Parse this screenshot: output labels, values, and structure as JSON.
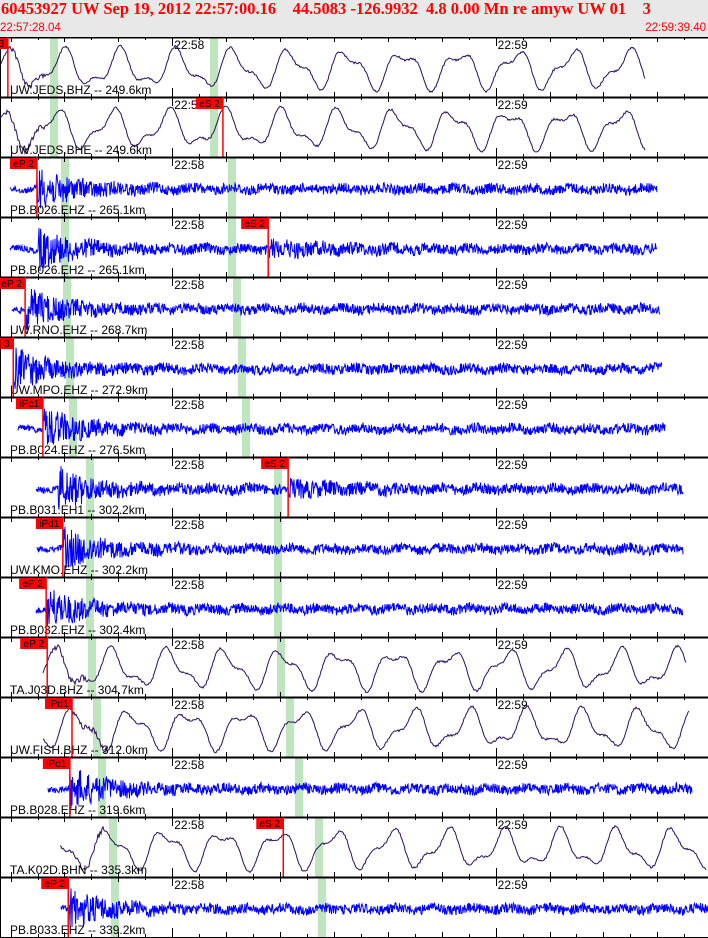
{
  "header": {
    "title": "60453927 UW Sep 19, 2012 22:57:00.16    44.5083 -126.9932  4.8 0.00 Mn re amyw UW 01    3",
    "start_time": "22:57:28.04",
    "end_time": "22:59:39.40"
  },
  "time_ticks": [
    "22:58",
    "22:59"
  ],
  "colors": {
    "header_text": "#ff0000",
    "broadband_trace": "#2a0f5c",
    "shortperiod_trace": "#0000ff",
    "pick": "#ff0000",
    "window": "#bfe5bf"
  },
  "panels": [
    {
      "label": "UW.JEDS.BHZ -- 249.6km",
      "pick": "3",
      "pick_time": "22:57:29.5",
      "trace": "broadband"
    },
    {
      "label": "UW.JEDS.BHE -- 249.6km",
      "pick": "eS 2",
      "pick_time": "22:58:09.4",
      "trace": "broadband"
    },
    {
      "label": "PB.B026.EHZ -- 265.1km",
      "pick": "eP 2",
      "pick_time": "22:57:34.9",
      "trace": "shortperiod"
    },
    {
      "label": "PB.B026.EH2 -- 265.1km",
      "pick": "eS 2",
      "pick_time": "22:58:17.8",
      "trace": "shortperiod"
    },
    {
      "label": "UW.RNO.EHZ -- 268.7km",
      "pick": "eP 2",
      "pick_time": "22:57:32.7",
      "trace": "shortperiod"
    },
    {
      "label": "UW.MPO.EHZ -- 272.9km",
      "pick": "3",
      "pick_time": "22:57:30.5",
      "trace": "shortperiod"
    },
    {
      "label": "PB.B024.EHZ -- 276.5km",
      "pick": "iPc1",
      "pick_time": "22:57:36.0",
      "trace": "shortperiod"
    },
    {
      "label": "PB.B031.EH1 -- 302.2km",
      "pick": "eS 2",
      "pick_time": "22:58:21.5",
      "trace": "shortperiod"
    },
    {
      "label": "UW.KMO.EHZ -- 302.2km",
      "pick": "iPd1",
      "pick_time": "22:57:39.7",
      "trace": "shortperiod"
    },
    {
      "label": "PB.B032.EHZ -- 302.4km",
      "pick": "eP 2",
      "pick_time": "22:57:36.6",
      "trace": "shortperiod"
    },
    {
      "label": "TA.J03D.BHZ -- 304.7km",
      "pick": "eP 2",
      "pick_time": "22:57:36.8",
      "trace": "broadband"
    },
    {
      "label": "UW.FISH.BHZ -- 312.0km",
      "pick": "iPd1",
      "pick_time": "22:57:41.4",
      "trace": "broadband"
    },
    {
      "label": "PB.B028.EHZ -- 319.6km",
      "pick": "iPd1",
      "pick_time": "22:57:41.0",
      "trace": "shortperiod"
    },
    {
      "label": "TA.K02D.BHN -- 335.3km",
      "pick": "eS 2",
      "pick_time": "22:58:20.6",
      "trace": "broadband"
    },
    {
      "label": "PB.B033.EHZ -- 339.2km",
      "pick": "eP 2",
      "pick_time": "22:57:40.7",
      "trace": "shortperiod"
    }
  ]
}
